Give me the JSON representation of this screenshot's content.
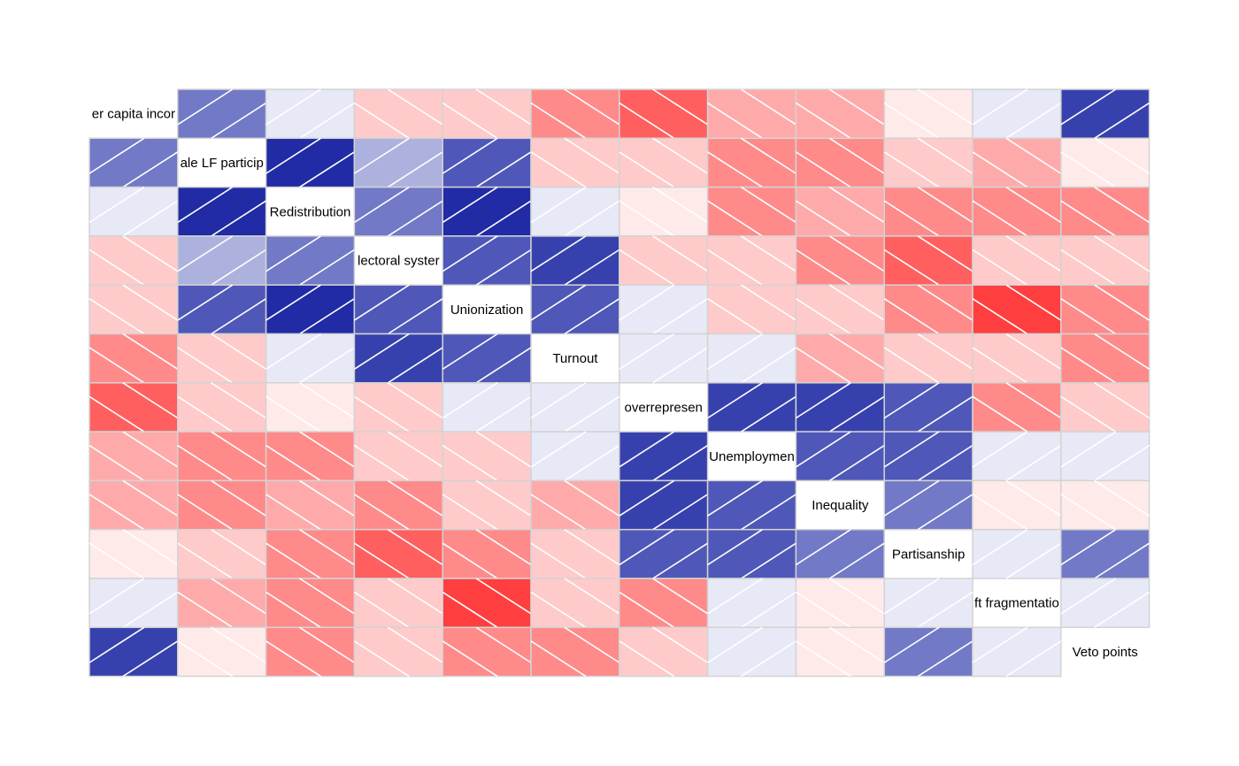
{
  "chart_data": {
    "type": "heatmap",
    "title": "",
    "variables": [
      "Per capita income",
      "Female LF participation",
      "Redistribution",
      "Electoral system",
      "Unionization",
      "Turnout",
      "Left overrepresentation",
      "Unemployment",
      "Inequality",
      "Partisanship",
      "Left fragmentation",
      "Veto points"
    ],
    "diagonal_labels_visible": [
      "er capita incor",
      "ale LF particip",
      "Redistribution",
      "lectoral syster",
      "Unionization",
      "Turnout",
      "overrepresen",
      "Unemploymen",
      "Inequality",
      "Partisanship",
      "ft fragmentatio",
      "Veto points"
    ],
    "matrix": [
      [
        null,
        0.6,
        0.1,
        -0.25,
        -0.25,
        -0.55,
        -0.75,
        -0.4,
        -0.4,
        -0.1,
        0.1,
        0.85
      ],
      [
        0.6,
        null,
        0.95,
        0.35,
        0.75,
        -0.25,
        -0.25,
        -0.55,
        -0.55,
        -0.25,
        -0.4,
        -0.1
      ],
      [
        0.1,
        0.95,
        null,
        0.6,
        0.95,
        0.1,
        -0.1,
        -0.55,
        -0.4,
        -0.55,
        -0.55,
        -0.55
      ],
      [
        -0.25,
        0.35,
        0.6,
        null,
        0.75,
        0.85,
        -0.25,
        -0.25,
        -0.55,
        -0.75,
        -0.25,
        -0.25
      ],
      [
        -0.25,
        0.75,
        0.95,
        0.75,
        null,
        0.75,
        0.1,
        -0.25,
        -0.25,
        -0.55,
        -0.9,
        -0.55
      ],
      [
        -0.55,
        -0.25,
        0.1,
        0.85,
        0.75,
        null,
        0.1,
        0.1,
        -0.4,
        -0.25,
        -0.25,
        -0.55
      ],
      [
        -0.75,
        -0.25,
        -0.1,
        -0.25,
        0.1,
        0.1,
        null,
        0.85,
        0.85,
        0.75,
        -0.55,
        -0.25
      ],
      [
        -0.4,
        -0.55,
        -0.55,
        -0.25,
        -0.25,
        0.1,
        0.85,
        null,
        0.75,
        0.75,
        0.1,
        0.1
      ],
      [
        -0.4,
        -0.55,
        -0.4,
        -0.55,
        -0.25,
        -0.4,
        0.85,
        0.75,
        null,
        0.6,
        -0.1,
        -0.1
      ],
      [
        -0.1,
        -0.25,
        -0.55,
        -0.75,
        -0.55,
        -0.25,
        0.75,
        0.75,
        0.6,
        null,
        0.1,
        0.6
      ],
      [
        0.1,
        -0.4,
        -0.55,
        -0.25,
        -0.9,
        -0.25,
        -0.55,
        0.1,
        -0.1,
        0.1,
        null,
        0.1
      ],
      [
        0.85,
        -0.1,
        -0.55,
        -0.25,
        -0.55,
        -0.55,
        -0.25,
        0.1,
        -0.1,
        0.6,
        0.1,
        null
      ]
    ],
    "value_range": [
      -1,
      1
    ],
    "colors": {
      "positive_strong": "#1420a0",
      "negative_strong": "#ff2a2a",
      "neutral": "#ffffff",
      "grid": "#d3d3d3",
      "hatch": "#ffffff"
    },
    "legend": "none",
    "grid": true
  }
}
